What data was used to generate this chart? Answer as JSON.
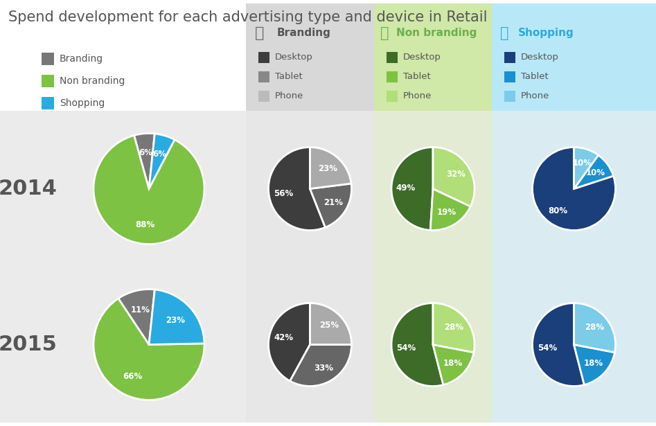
{
  "title": "Spend development for each advertising type and device in Retail",
  "title_color": "#555555",
  "title_fontsize": 15,
  "legend_left_items": [
    "Branding",
    "Non branding",
    "Shopping"
  ],
  "legend_left_colors": [
    "#777777",
    "#7dc243",
    "#29abe2"
  ],
  "col_headers": [
    "Branding",
    "Non branding",
    "Shopping"
  ],
  "col_header_colors": [
    "#555555",
    "#6ab04c",
    "#29abe2"
  ],
  "col_bg_colors": [
    "#e4e4e4",
    "#deecc4",
    "#cceef8"
  ],
  "col_header_bg_colors": [
    "#d8d8d8",
    "#d0e8a8",
    "#b8e8f8"
  ],
  "row_bg_color": "#ebebeb",
  "row_labels": [
    "2014",
    "2015"
  ],
  "row_label_color": "#555555",
  "sub_legend_labels": [
    "Desktop",
    "Tablet",
    "Phone"
  ],
  "sub_legend_branding_colors": [
    "#3d3d3d",
    "#888888",
    "#bbbbbb"
  ],
  "sub_legend_nonbranding_colors": [
    "#3d6b28",
    "#7dc243",
    "#b0de78"
  ],
  "sub_legend_shopping_colors": [
    "#1a3f7a",
    "#1a90d0",
    "#7acce8"
  ],
  "pies": {
    "2014_overall": {
      "sizes": [
        6,
        88,
        6
      ],
      "colors": [
        "#777777",
        "#7dc243",
        "#29abe2"
      ],
      "labels": [
        "6%",
        "88%",
        "6%"
      ],
      "startangle": 84
    },
    "2014_branding": {
      "sizes": [
        56,
        21,
        23
      ],
      "colors": [
        "#3d3d3d",
        "#666666",
        "#aaaaaa"
      ],
      "labels": [
        "56%",
        "21%",
        "23%"
      ],
      "startangle": 90
    },
    "2014_nonbranding": {
      "sizes": [
        49,
        19,
        32
      ],
      "colors": [
        "#3d6b28",
        "#7dc243",
        "#b0de78"
      ],
      "labels": [
        "49%",
        "19%",
        "32%"
      ],
      "startangle": 90
    },
    "2014_shopping": {
      "sizes": [
        80,
        10,
        10
      ],
      "colors": [
        "#1a3f7a",
        "#1a90d0",
        "#7acce8"
      ],
      "labels": [
        "80%",
        "10%",
        "10%"
      ],
      "startangle": 90
    },
    "2015_overall": {
      "sizes": [
        11,
        66,
        23
      ],
      "colors": [
        "#777777",
        "#7dc243",
        "#29abe2"
      ],
      "labels": [
        "11%",
        "66%",
        "23%"
      ],
      "startangle": 84
    },
    "2015_branding": {
      "sizes": [
        42,
        33,
        25
      ],
      "colors": [
        "#3d3d3d",
        "#666666",
        "#aaaaaa"
      ],
      "labels": [
        "42%",
        "33%",
        "25%"
      ],
      "startangle": 90
    },
    "2015_nonbranding": {
      "sizes": [
        54,
        18,
        28
      ],
      "colors": [
        "#3d6b28",
        "#7dc243",
        "#b0de78"
      ],
      "labels": [
        "54%",
        "18%",
        "28%"
      ],
      "startangle": 90
    },
    "2015_shopping": {
      "sizes": [
        54,
        18,
        28
      ],
      "colors": [
        "#1a3f7a",
        "#1a90d0",
        "#7acce8"
      ],
      "labels": [
        "54%",
        "18%",
        "28%"
      ],
      "startangle": 90
    }
  }
}
